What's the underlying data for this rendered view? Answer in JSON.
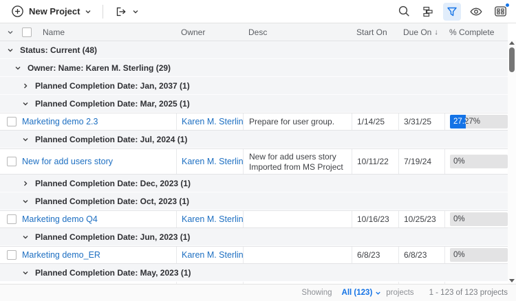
{
  "toolbar": {
    "new_project_label": "New Project",
    "icons": {
      "new_project": "plus-circle",
      "export": "export-arrow",
      "search": "magnifier",
      "grouping": "stacked-sort",
      "filter": "funnel",
      "visibility": "eye",
      "layout": "grid-with-dot"
    }
  },
  "table": {
    "header": {
      "name": "Name",
      "owner": "Owner",
      "desc": "Desc",
      "start_on": "Start On",
      "due_on": "Due On",
      "due_on_sort_indicator": "↓",
      "percent_complete": "% Complete"
    },
    "rows": [
      {
        "type": "group",
        "level": 0,
        "expanded": true,
        "label": "Status: Current (48)"
      },
      {
        "type": "group",
        "level": 1,
        "expanded": true,
        "label": "Owner: Name: Karen M. Sterling (29)"
      },
      {
        "type": "group",
        "level": 2,
        "expanded": false,
        "label": "Planned Completion Date: Jan, 2037 (1)"
      },
      {
        "type": "group",
        "level": 2,
        "expanded": true,
        "label": "Planned Completion Date: Mar, 2025 (1)"
      },
      {
        "type": "project",
        "name": "Marketing demo 2.3",
        "owner": "Karen M. Sterling",
        "desc": "Prepare for user group.",
        "start_on": "1/14/25",
        "due_on": "3/31/25",
        "percent_label": "27.27%",
        "percent": 27.27
      },
      {
        "type": "group",
        "level": 2,
        "expanded": true,
        "label": "Planned Completion Date: Jul, 2024 (1)"
      },
      {
        "type": "project",
        "name": "New for add users story",
        "owner": "Karen M. Sterling",
        "desc": "New for add users story Imported from MS Project",
        "start_on": "10/11/22",
        "due_on": "7/19/24",
        "percent_label": "0%",
        "percent": 0
      },
      {
        "type": "group",
        "level": 2,
        "expanded": false,
        "label": "Planned Completion Date: Dec, 2023 (1)"
      },
      {
        "type": "group",
        "level": 2,
        "expanded": true,
        "label": "Planned Completion Date: Oct, 2023 (1)"
      },
      {
        "type": "project",
        "name": "Marketing demo Q4",
        "owner": "Karen M. Sterling",
        "desc": "",
        "start_on": "10/16/23",
        "due_on": "10/25/23",
        "percent_label": "0%",
        "percent": 0
      },
      {
        "type": "group",
        "level": 2,
        "expanded": true,
        "label": "Planned Completion Date: Jun, 2023 (1)"
      },
      {
        "type": "project",
        "name": "Marketing demo_ER",
        "owner": "Karen M. Sterling",
        "desc": "",
        "start_on": "6/8/23",
        "due_on": "6/8/23",
        "percent_label": "0%",
        "percent": 0
      },
      {
        "type": "group",
        "level": 2,
        "expanded": true,
        "label": "Planned Completion Date: May, 2023 (1)"
      }
    ]
  },
  "footer": {
    "showing_label": "Showing",
    "count_selector": "All (123)",
    "unit_label": "projects",
    "range_label": "1 - 123 of 123 projects"
  },
  "colors": {
    "accent_blue": "#1473e6",
    "link_blue": "#1d6fc2",
    "progress_fill": "#1473e6",
    "progress_track": "#e3e3e4",
    "filter_active_bg": "#e1edfb",
    "group_row_bg": "#f4f5f7",
    "header_bg": "#f4f5f6"
  }
}
